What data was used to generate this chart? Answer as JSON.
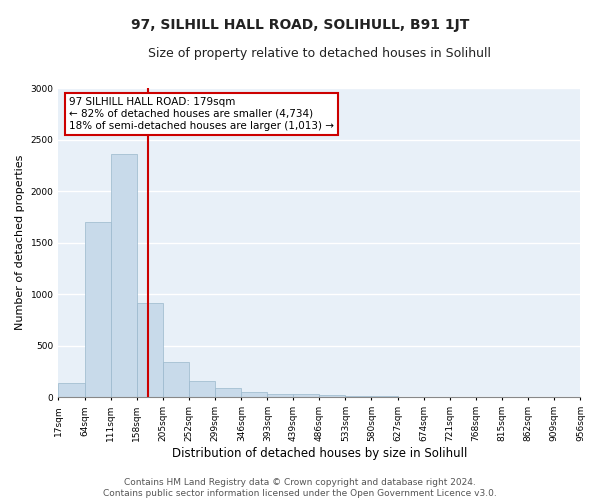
{
  "title": "97, SILHILL HALL ROAD, SOLIHULL, B91 1JT",
  "subtitle": "Size of property relative to detached houses in Solihull",
  "xlabel": "Distribution of detached houses by size in Solihull",
  "ylabel": "Number of detached properties",
  "bin_edges": [
    17,
    64,
    111,
    158,
    205,
    252,
    299,
    346,
    393,
    439,
    486,
    533,
    580,
    627,
    674,
    721,
    768,
    815,
    862,
    909,
    956
  ],
  "bar_heights": [
    140,
    1700,
    2360,
    920,
    340,
    160,
    90,
    55,
    35,
    30,
    20,
    15,
    12,
    8,
    5,
    4,
    3,
    2,
    2,
    1
  ],
  "bar_color": "#c8daea",
  "bar_edge_color": "#9ab8cc",
  "red_line_x": 179,
  "annotation_text": "97 SILHILL HALL ROAD: 179sqm\n← 82% of detached houses are smaller (4,734)\n18% of semi-detached houses are larger (1,013) →",
  "annotation_box_color": "#ffffff",
  "annotation_box_edge_color": "#cc0000",
  "ylim": [
    0,
    3000
  ],
  "yticks": [
    0,
    500,
    1000,
    1500,
    2000,
    2500,
    3000
  ],
  "footnote": "Contains HM Land Registry data © Crown copyright and database right 2024.\nContains public sector information licensed under the Open Government Licence v3.0.",
  "bg_color": "#ffffff",
  "plot_bg_color": "#e8f0f8",
  "grid_color": "#ffffff",
  "title_fontsize": 10,
  "subtitle_fontsize": 9,
  "xlabel_fontsize": 8.5,
  "ylabel_fontsize": 8,
  "tick_fontsize": 6.5,
  "annotation_fontsize": 7.5,
  "footnote_fontsize": 6.5
}
